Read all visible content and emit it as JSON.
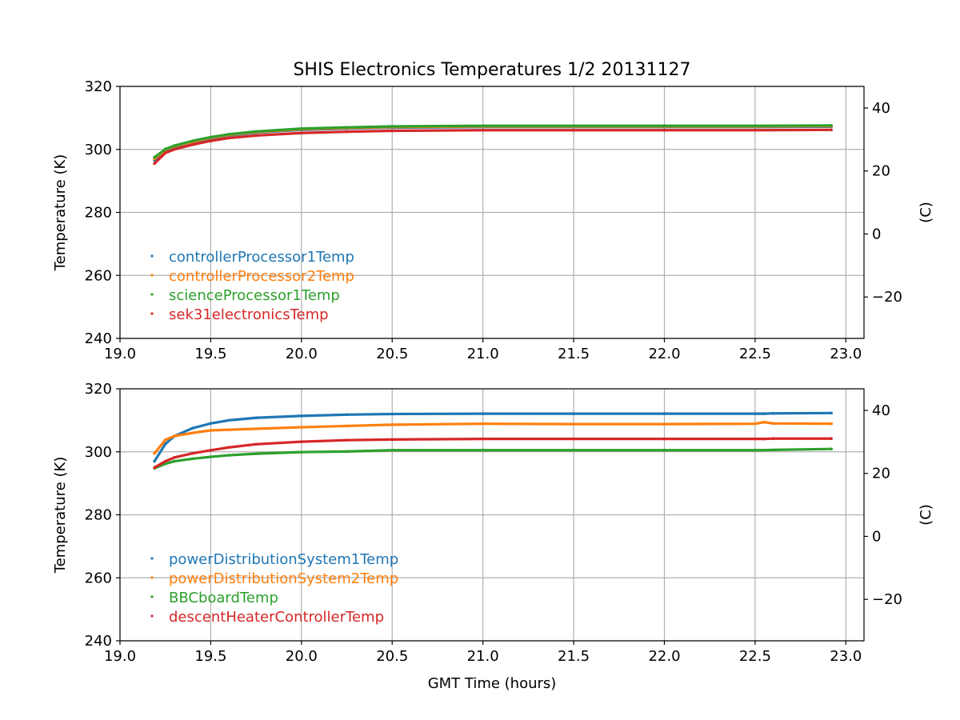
{
  "figure": {
    "title": "SHIS Electronics Temperatures 1/2 20131127",
    "xlabel": "GMT Time (hours)"
  },
  "chart_data": [
    {
      "type": "scatter",
      "panel": "top",
      "ylabel": "Temperature (K)",
      "ylabel_right": "(C)",
      "xlim": [
        19.0,
        23.1
      ],
      "ylim": [
        240,
        320
      ],
      "xticks": [
        "19.0",
        "19.5",
        "20.0",
        "20.5",
        "21.0",
        "21.5",
        "22.0",
        "22.5",
        "23.0"
      ],
      "yticks": [
        "240",
        "260",
        "280",
        "300",
        "320"
      ],
      "yticks_right": [
        "−20",
        "0",
        "20",
        "40"
      ],
      "yticks_right_values": [
        -20,
        0,
        20,
        40
      ],
      "grid": true,
      "legend_location": "lower-left",
      "x": [
        19.19,
        19.25,
        19.3,
        19.4,
        19.5,
        19.6,
        19.75,
        20.0,
        20.25,
        20.5,
        21.0,
        21.5,
        22.0,
        22.5,
        22.92
      ],
      "series": [
        {
          "name": "controllerProcessor1Temp",
          "color": "#1f77b4",
          "values": [
            296.5,
            299.6,
            300.8,
            302.2,
            303.5,
            304.4,
            305.3,
            306.2,
            306.6,
            306.9,
            307.1,
            307.1,
            307.1,
            307.1,
            307.2
          ]
        },
        {
          "name": "controllerProcessor2Temp",
          "color": "#ff7f0e",
          "values": [
            297.0,
            299.9,
            301.0,
            302.4,
            303.7,
            304.6,
            305.5,
            306.4,
            306.8,
            307.1,
            307.3,
            307.3,
            307.3,
            307.3,
            307.4
          ]
        },
        {
          "name": "scienceProcessor1Temp",
          "color": "#2ca02c",
          "values": [
            297.5,
            300.1,
            301.2,
            302.7,
            303.9,
            304.8,
            305.7,
            306.6,
            307.0,
            307.3,
            307.5,
            307.5,
            307.5,
            307.5,
            307.6
          ]
        },
        {
          "name": "sek31electronicsTemp",
          "color": "#d62728",
          "values": [
            295.5,
            298.9,
            300.0,
            301.5,
            302.7,
            303.6,
            304.4,
            305.2,
            305.6,
            305.9,
            306.1,
            306.1,
            306.1,
            306.1,
            306.2
          ]
        }
      ]
    },
    {
      "type": "scatter",
      "panel": "bottom",
      "ylabel": "Temperature (K)",
      "ylabel_right": "(C)",
      "xlim": [
        19.0,
        23.1
      ],
      "ylim": [
        240,
        320
      ],
      "xticks": [
        "19.0",
        "19.5",
        "20.0",
        "20.5",
        "21.0",
        "21.5",
        "22.0",
        "22.5",
        "23.0"
      ],
      "yticks": [
        "240",
        "260",
        "280",
        "300",
        "320"
      ],
      "yticks_right": [
        "−20",
        "0",
        "20",
        "40"
      ],
      "yticks_right_values": [
        -20,
        0,
        20,
        40
      ],
      "grid": true,
      "legend_location": "lower-left",
      "x": [
        19.19,
        19.25,
        19.3,
        19.4,
        19.5,
        19.6,
        19.75,
        20.0,
        20.25,
        20.5,
        21.0,
        21.5,
        22.0,
        22.5,
        22.55,
        22.6,
        22.92
      ],
      "series": [
        {
          "name": "powerDistributionSystem1Temp",
          "color": "#1f77b4",
          "values": [
            297.0,
            302.5,
            305.0,
            307.5,
            309.0,
            310.0,
            310.8,
            311.4,
            311.8,
            312.0,
            312.1,
            312.1,
            312.1,
            312.1,
            312.1,
            312.2,
            312.3
          ]
        },
        {
          "name": "powerDistributionSystem2Temp",
          "color": "#ff7f0e",
          "values": [
            299.5,
            303.8,
            305.0,
            306.0,
            306.8,
            307.0,
            307.3,
            307.8,
            308.2,
            308.6,
            308.9,
            308.8,
            308.8,
            308.9,
            309.4,
            309.0,
            308.9
          ]
        },
        {
          "name": "BBCboardTemp",
          "color": "#2ca02c",
          "values": [
            294.8,
            296.2,
            297.0,
            297.8,
            298.4,
            298.9,
            299.4,
            299.9,
            300.1,
            300.5,
            300.5,
            300.5,
            300.5,
            300.5,
            300.5,
            300.6,
            300.9
          ]
        },
        {
          "name": "descentHeaterControllerTemp",
          "color": "#d62728",
          "values": [
            295.0,
            297.0,
            298.2,
            299.5,
            300.5,
            301.4,
            302.4,
            303.2,
            303.7,
            303.9,
            304.1,
            304.1,
            304.1,
            304.1,
            304.1,
            304.2,
            304.2
          ]
        }
      ]
    }
  ]
}
